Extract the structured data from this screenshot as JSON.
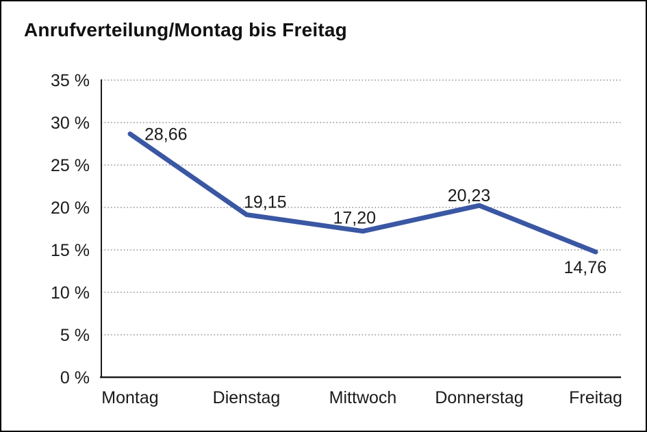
{
  "colors": {
    "line": "#3A57A4",
    "grid": "#8a8a8a",
    "axis": "#1a1a1a",
    "text": "#1a1a1a",
    "background": "#ffffff",
    "border": "#000000"
  },
  "chart_data": {
    "type": "line",
    "title": "Anrufverteilung/Montag bis Freitag",
    "categories": [
      "Montag",
      "Dienstag",
      "Mittwoch",
      "Donnerstag",
      "Freitag"
    ],
    "values": [
      28.66,
      19.15,
      17.2,
      20.23,
      14.76
    ],
    "value_labels": [
      "28,66",
      "19,15",
      "17,20",
      "20,23",
      "14,76"
    ],
    "xlabel": "",
    "ylabel": "",
    "ylim": [
      0,
      35
    ],
    "ytick_step": 5,
    "ytick_labels": [
      "0 %",
      "5 %",
      "10 %",
      "15 %",
      "20 %",
      "25 %",
      "30 %",
      "35 %"
    ],
    "grid": "horizontal-dotted",
    "legend": "none"
  }
}
